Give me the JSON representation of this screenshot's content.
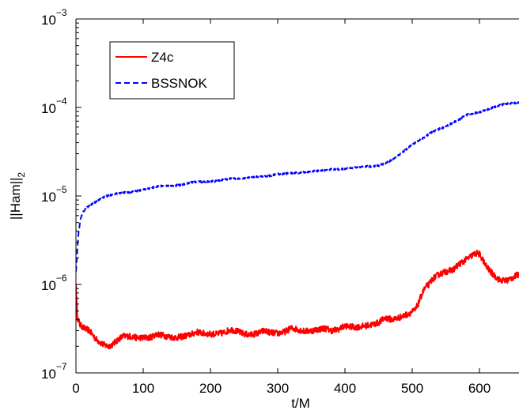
{
  "chart_data": {
    "type": "line",
    "title": "",
    "xlabel": "t/M",
    "ylabel_base": "||Ham||",
    "ylabel_sub": "2",
    "xlim": [
      0,
      660
    ],
    "ylim": [
      1e-07,
      0.001
    ],
    "yscale": "log",
    "grid": false,
    "legend_position": "top-left",
    "x_ticks": [
      0,
      100,
      200,
      300,
      400,
      500,
      600
    ],
    "x_tick_labels": [
      "0",
      "100",
      "200",
      "300",
      "400",
      "500",
      "600"
    ],
    "y_ticks": [
      {
        "value": 1e-07,
        "base": "10",
        "exp": "−7"
      },
      {
        "value": 1e-06,
        "base": "10",
        "exp": "−6"
      },
      {
        "value": 1e-05,
        "base": "10",
        "exp": "−5"
      },
      {
        "value": 0.0001,
        "base": "10",
        "exp": "−4"
      },
      {
        "value": 0.001,
        "base": "10",
        "exp": "−3"
      }
    ],
    "series": [
      {
        "name": "Z4c",
        "color": "#ff0000",
        "style": "solid",
        "noise": 0.035,
        "points": [
          [
            0,
            1e-06
          ],
          [
            2,
            4.3e-07
          ],
          [
            6,
            3.5e-07
          ],
          [
            12,
            3.2e-07
          ],
          [
            20,
            3e-07
          ],
          [
            30,
            2.4e-07
          ],
          [
            40,
            2.1e-07
          ],
          [
            48,
            2e-07
          ],
          [
            55,
            2.1e-07
          ],
          [
            60,
            2.3e-07
          ],
          [
            70,
            2.6e-07
          ],
          [
            80,
            2.6e-07
          ],
          [
            90,
            2.5e-07
          ],
          [
            100,
            2.5e-07
          ],
          [
            110,
            2.5e-07
          ],
          [
            120,
            2.75e-07
          ],
          [
            130,
            2.65e-07
          ],
          [
            140,
            2.55e-07
          ],
          [
            150,
            2.5e-07
          ],
          [
            160,
            2.6e-07
          ],
          [
            170,
            2.7e-07
          ],
          [
            180,
            2.9e-07
          ],
          [
            190,
            2.8e-07
          ],
          [
            200,
            2.75e-07
          ],
          [
            210,
            2.75e-07
          ],
          [
            220,
            2.85e-07
          ],
          [
            230,
            3.1e-07
          ],
          [
            240,
            2.95e-07
          ],
          [
            250,
            2.75e-07
          ],
          [
            260,
            2.7e-07
          ],
          [
            270,
            2.8e-07
          ],
          [
            280,
            3e-07
          ],
          [
            290,
            2.85e-07
          ],
          [
            300,
            2.8e-07
          ],
          [
            310,
            2.9e-07
          ],
          [
            320,
            3.2e-07
          ],
          [
            330,
            3.1e-07
          ],
          [
            340,
            2.95e-07
          ],
          [
            350,
            3e-07
          ],
          [
            360,
            3.1e-07
          ],
          [
            370,
            3.2e-07
          ],
          [
            380,
            3e-07
          ],
          [
            390,
            3.1e-07
          ],
          [
            400,
            3.4e-07
          ],
          [
            410,
            3.3e-07
          ],
          [
            420,
            3.3e-07
          ],
          [
            430,
            3.4e-07
          ],
          [
            440,
            3.5e-07
          ],
          [
            450,
            3.7e-07
          ],
          [
            460,
            4.2e-07
          ],
          [
            470,
            4e-07
          ],
          [
            480,
            4.2e-07
          ],
          [
            490,
            4.5e-07
          ],
          [
            500,
            4.9e-07
          ],
          [
            505,
            5.2e-07
          ],
          [
            510,
            6.3e-07
          ],
          [
            515,
            8e-07
          ],
          [
            520,
            9.3e-07
          ],
          [
            525,
            1e-06
          ],
          [
            530,
            1.15e-06
          ],
          [
            540,
            1.3e-06
          ],
          [
            550,
            1.4e-06
          ],
          [
            560,
            1.45e-06
          ],
          [
            570,
            1.7e-06
          ],
          [
            580,
            1.9e-06
          ],
          [
            590,
            2.15e-06
          ],
          [
            596,
            2.25e-06
          ],
          [
            600,
            2.2e-06
          ],
          [
            605,
            1.9e-06
          ],
          [
            610,
            1.6e-06
          ],
          [
            620,
            1.3e-06
          ],
          [
            630,
            1.12e-06
          ],
          [
            640,
            1.1e-06
          ],
          [
            650,
            1.2e-06
          ],
          [
            660,
            1.32e-06
          ]
        ]
      },
      {
        "name": "BSSNOK",
        "color": "#0000ff",
        "style": "dashed",
        "noise": 0.01,
        "points": [
          [
            0,
            1.4e-06
          ],
          [
            2,
            2.5e-06
          ],
          [
            4,
            4e-06
          ],
          [
            7,
            5.5e-06
          ],
          [
            10,
            6.5e-06
          ],
          [
            15,
            7.2e-06
          ],
          [
            20,
            7.8e-06
          ],
          [
            30,
            8.6e-06
          ],
          [
            40,
            9.6e-06
          ],
          [
            50,
            1.02e-05
          ],
          [
            60,
            1.06e-05
          ],
          [
            70,
            1.09e-05
          ],
          [
            80,
            1.1e-05
          ],
          [
            90,
            1.13e-05
          ],
          [
            100,
            1.18e-05
          ],
          [
            110,
            1.22e-05
          ],
          [
            120,
            1.28e-05
          ],
          [
            130,
            1.3e-05
          ],
          [
            140,
            1.31e-05
          ],
          [
            150,
            1.32e-05
          ],
          [
            160,
            1.35e-05
          ],
          [
            170,
            1.42e-05
          ],
          [
            180,
            1.45e-05
          ],
          [
            190,
            1.44e-05
          ],
          [
            200,
            1.46e-05
          ],
          [
            210,
            1.48e-05
          ],
          [
            220,
            1.52e-05
          ],
          [
            230,
            1.58e-05
          ],
          [
            240,
            1.56e-05
          ],
          [
            250,
            1.58e-05
          ],
          [
            260,
            1.62e-05
          ],
          [
            270,
            1.65e-05
          ],
          [
            280,
            1.66e-05
          ],
          [
            290,
            1.7e-05
          ],
          [
            300,
            1.76e-05
          ],
          [
            310,
            1.78e-05
          ],
          [
            320,
            1.81e-05
          ],
          [
            330,
            1.82e-05
          ],
          [
            340,
            1.85e-05
          ],
          [
            350,
            1.89e-05
          ],
          [
            360,
            1.92e-05
          ],
          [
            370,
            1.95e-05
          ],
          [
            380,
            2e-05
          ],
          [
            390,
            2e-05
          ],
          [
            400,
            2.03e-05
          ],
          [
            410,
            2.08e-05
          ],
          [
            420,
            2.12e-05
          ],
          [
            430,
            2.15e-05
          ],
          [
            440,
            2.16e-05
          ],
          [
            450,
            2.2e-05
          ],
          [
            460,
            2.35e-05
          ],
          [
            470,
            2.55e-05
          ],
          [
            480,
            2.9e-05
          ],
          [
            490,
            3.3e-05
          ],
          [
            500,
            3.8e-05
          ],
          [
            510,
            4.2e-05
          ],
          [
            520,
            4.7e-05
          ],
          [
            530,
            5.3e-05
          ],
          [
            540,
            5.7e-05
          ],
          [
            550,
            6.1e-05
          ],
          [
            560,
            6.7e-05
          ],
          [
            570,
            7.3e-05
          ],
          [
            580,
            8.2e-05
          ],
          [
            590,
            8.6e-05
          ],
          [
            600,
            8.8e-05
          ],
          [
            610,
            9.3e-05
          ],
          [
            620,
            0.0001
          ],
          [
            630,
            0.000106
          ],
          [
            640,
            0.00011
          ],
          [
            650,
            0.000112
          ],
          [
            660,
            0.000113
          ]
        ]
      }
    ]
  }
}
